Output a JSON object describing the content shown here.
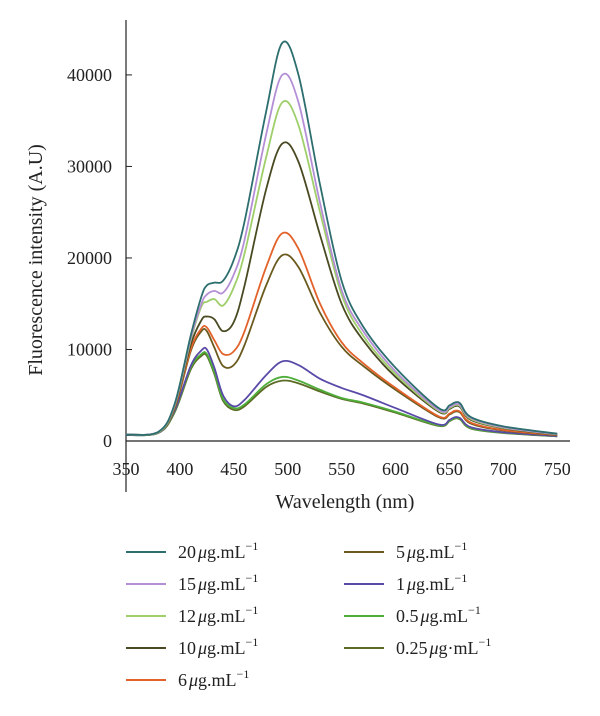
{
  "chart_data": {
    "type": "line",
    "title": "",
    "xlabel": "Wavelength (nm)",
    "ylabel": "Fluorescence intensity (A.U)",
    "xlim": [
      350,
      760
    ],
    "ylim": [
      0,
      46000
    ],
    "x_ticks": [
      "350",
      "400",
      "450",
      "500",
      "550",
      "600",
      "650",
      "700",
      "750"
    ],
    "y_ticks": [
      "0",
      "10000",
      "20000",
      "30000",
      "40000"
    ],
    "grid": false,
    "legend_position": "bottom",
    "x": [
      350,
      380,
      395,
      410,
      420,
      425,
      432,
      440,
      450,
      460,
      480,
      495,
      510,
      530,
      550,
      570,
      600,
      640,
      650,
      655,
      660,
      670,
      700,
      750
    ],
    "series": [
      {
        "name_value": "20",
        "name_unit": "μg.mL",
        "name_exp": "−1",
        "color": "#2d6e6e",
        "values": [
          700,
          1000,
          4000,
          11500,
          15800,
          17000,
          17300,
          17500,
          19800,
          24000,
          36000,
          43500,
          40000,
          28000,
          17500,
          12500,
          8000,
          3600,
          3900,
          4200,
          4100,
          2600,
          1600,
          800
        ]
      },
      {
        "name_value": "15",
        "name_unit": "μg.mL",
        "name_exp": "−1",
        "color": "#b58fd6",
        "values": [
          700,
          1000,
          3900,
          11200,
          15000,
          16000,
          16400,
          16200,
          18200,
          22000,
          33500,
          40000,
          37000,
          26000,
          16500,
          12000,
          7600,
          3400,
          3700,
          4000,
          3900,
          2500,
          1500,
          750
        ]
      },
      {
        "name_value": "12",
        "name_unit": "μg.mL",
        "name_exp": "−1",
        "color": "#9fcf6a",
        "values": [
          700,
          950,
          3800,
          11000,
          14700,
          15200,
          15500,
          14800,
          16800,
          20500,
          31000,
          37000,
          34500,
          25000,
          16000,
          11500,
          7300,
          3300,
          3600,
          3900,
          3800,
          2400,
          1450,
          730
        ]
      },
      {
        "name_value": "10",
        "name_unit": "μg.mL",
        "name_exp": "−1",
        "color": "#4a4a22",
        "values": [
          700,
          950,
          3700,
          10500,
          13200,
          13600,
          13300,
          12000,
          13000,
          17000,
          27500,
          32500,
          30500,
          22500,
          15000,
          11000,
          7000,
          3200,
          3500,
          3800,
          3700,
          2300,
          1400,
          700
        ]
      },
      {
        "name_value": "6",
        "name_unit": "μg.mL",
        "name_exp": "−1",
        "color": "#e2622a",
        "values": [
          700,
          950,
          3600,
          10000,
          12300,
          12400,
          11000,
          9500,
          9800,
          12000,
          19000,
          22700,
          21000,
          15000,
          10800,
          8500,
          5800,
          2700,
          3000,
          3300,
          3200,
          2000,
          1200,
          650
        ]
      },
      {
        "name_value": "5",
        "name_unit": "μg.mL",
        "name_exp": "−1",
        "color": "#6b5a1e",
        "values": [
          700,
          950,
          3500,
          9800,
          12000,
          12000,
          10200,
          8200,
          8300,
          10500,
          17000,
          20300,
          19000,
          14000,
          10300,
          8200,
          5600,
          2600,
          2900,
          3200,
          3100,
          1900,
          1150,
          630
        ]
      },
      {
        "name_value": "1",
        "name_unit": "μg.mL",
        "name_exp": "−1",
        "color": "#5a4aa8",
        "values": [
          650,
          900,
          3300,
          8200,
          9900,
          10000,
          8000,
          5000,
          3800,
          4500,
          7200,
          8700,
          8300,
          6800,
          5800,
          5000,
          3600,
          1800,
          2300,
          2600,
          2500,
          1500,
          950,
          550
        ]
      },
      {
        "name_value": "0.5",
        "name_unit": "μg.mL",
        "name_exp": "−1",
        "color": "#4fae3a",
        "values": [
          650,
          900,
          3200,
          8000,
          9500,
          9500,
          7500,
          4600,
          3600,
          4000,
          6200,
          7000,
          6600,
          5600,
          4700,
          4200,
          3200,
          1700,
          2200,
          2500,
          2400,
          1400,
          900,
          520
        ]
      },
      {
        "name_value": "0.25",
        "name_unit": "μg·mL",
        "name_exp": "−1",
        "color": "#5c6b24",
        "values": [
          650,
          880,
          3100,
          7800,
          9300,
          9300,
          7300,
          4400,
          3400,
          3800,
          5900,
          6600,
          6300,
          5400,
          4600,
          4100,
          3100,
          1650,
          2150,
          2450,
          2350,
          1350,
          880,
          500
        ]
      }
    ]
  }
}
